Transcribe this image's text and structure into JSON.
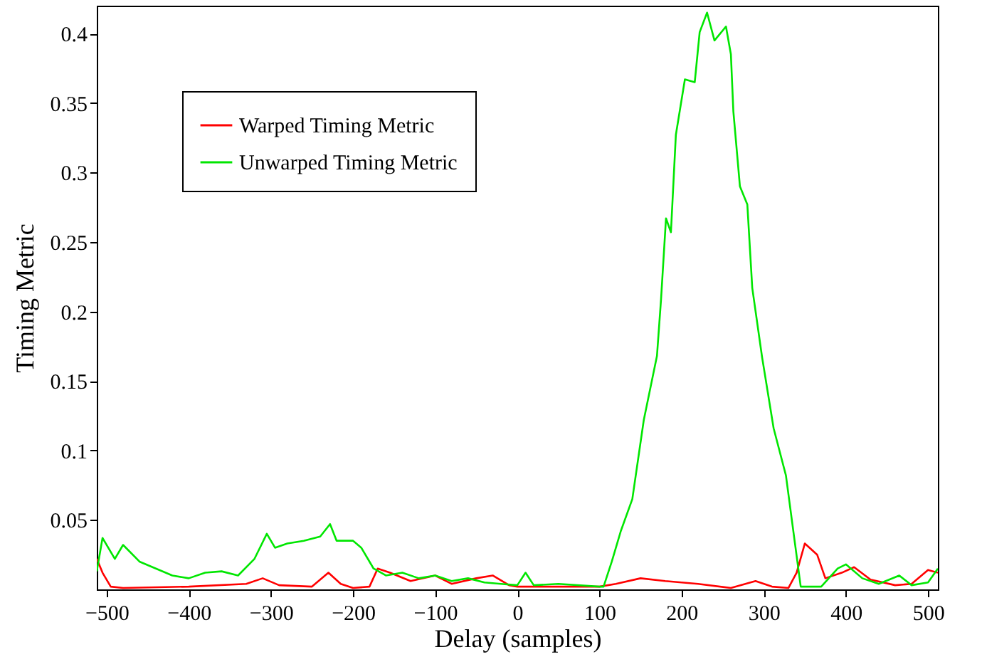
{
  "chart_data": {
    "type": "line",
    "xlabel": "Delay (samples)",
    "ylabel": "Timing Metric",
    "xlim": [
      -512,
      512
    ],
    "ylim": [
      0,
      0.42
    ],
    "xticks": [
      -500,
      -400,
      -300,
      -200,
      -100,
      0,
      100,
      200,
      300,
      400,
      500
    ],
    "yticks": [
      0.05,
      0.1,
      0.15,
      0.2,
      0.25,
      0.3,
      0.35,
      0.4
    ],
    "grid": false,
    "legend": "top left",
    "marker": "none",
    "line_style": "solid",
    "series": [
      {
        "name": "Warped Timing Metric",
        "color": "#ff0000",
        "x": [
          -512,
          -505,
          -495,
          -480,
          -400,
          -330,
          -310,
          -290,
          -250,
          -230,
          -215,
          -200,
          -180,
          -170,
          -155,
          -130,
          -100,
          -80,
          -50,
          -30,
          -10,
          0,
          100,
          120,
          150,
          180,
          220,
          260,
          290,
          310,
          330,
          340,
          350,
          365,
          375,
          395,
          410,
          430,
          460,
          480,
          500,
          512
        ],
        "values": [
          0.022,
          0.012,
          0.002,
          0.001,
          0.002,
          0.004,
          0.008,
          0.003,
          0.002,
          0.012,
          0.004,
          0.001,
          0.002,
          0.015,
          0.012,
          0.006,
          0.01,
          0.004,
          0.008,
          0.01,
          0.003,
          0.002,
          0.002,
          0.004,
          0.008,
          0.006,
          0.004,
          0.001,
          0.006,
          0.002,
          0.001,
          0.012,
          0.033,
          0.025,
          0.008,
          0.012,
          0.016,
          0.007,
          0.003,
          0.004,
          0.014,
          0.012
        ]
      },
      {
        "name": "Unwarped Timing Metric",
        "color": "#00e600",
        "x": [
          -512,
          -505,
          -490,
          -480,
          -460,
          -440,
          -420,
          -400,
          -380,
          -360,
          -340,
          -320,
          -305,
          -295,
          -280,
          -260,
          -240,
          -228,
          -220,
          -200,
          -190,
          -175,
          -160,
          -140,
          -120,
          -100,
          -80,
          -60,
          -40,
          -20,
          0,
          10,
          20,
          50,
          100,
          105,
          115,
          126,
          140,
          154,
          170,
          175,
          181,
          187,
          193,
          204,
          216,
          222,
          231,
          240,
          254,
          260,
          263,
          271,
          280,
          286,
          298,
          312,
          327,
          345,
          370,
          390,
          400,
          420,
          440,
          465,
          480,
          500,
          512
        ],
        "values": [
          0.013,
          0.037,
          0.022,
          0.032,
          0.02,
          0.015,
          0.01,
          0.008,
          0.012,
          0.013,
          0.01,
          0.022,
          0.04,
          0.03,
          0.033,
          0.035,
          0.038,
          0.047,
          0.035,
          0.035,
          0.03,
          0.015,
          0.01,
          0.012,
          0.008,
          0.01,
          0.006,
          0.008,
          0.005,
          0.004,
          0.003,
          0.012,
          0.003,
          0.004,
          0.002,
          0.002,
          0.02,
          0.042,
          0.065,
          0.122,
          0.168,
          0.209,
          0.267,
          0.257,
          0.327,
          0.367,
          0.365,
          0.401,
          0.415,
          0.395,
          0.405,
          0.385,
          0.344,
          0.29,
          0.277,
          0.217,
          0.167,
          0.116,
          0.082,
          0.002,
          0.002,
          0.015,
          0.018,
          0.008,
          0.004,
          0.01,
          0.003,
          0.005,
          0.015
        ]
      }
    ]
  }
}
